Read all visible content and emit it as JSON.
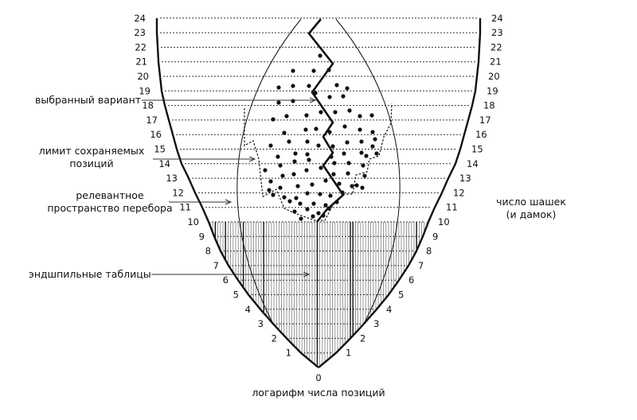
{
  "diagram": {
    "type": "search-space-diagram",
    "annotations": {
      "chosen_line": "выбранный вариант",
      "stored_limit_line1": "лимит сохраняемых",
      "stored_limit_line2": "позиций",
      "relevant_space_line1": "релевантное",
      "relevant_space_line2": "пространство перебора",
      "endgame_tables": "эндшпильные таблицы"
    },
    "axis_labels": {
      "bottom": "логарифм числа позиций",
      "right_line1": "число шашек",
      "right_line2": "(и дамок)"
    },
    "levels": [
      0,
      1,
      2,
      3,
      4,
      5,
      6,
      7,
      8,
      9,
      10,
      11,
      12,
      13,
      14,
      15,
      16,
      17,
      18,
      19,
      20,
      21,
      22,
      23,
      24
    ],
    "colors": {
      "ink": "#111111",
      "grid": "#333333",
      "hatch": "#555555"
    }
  }
}
